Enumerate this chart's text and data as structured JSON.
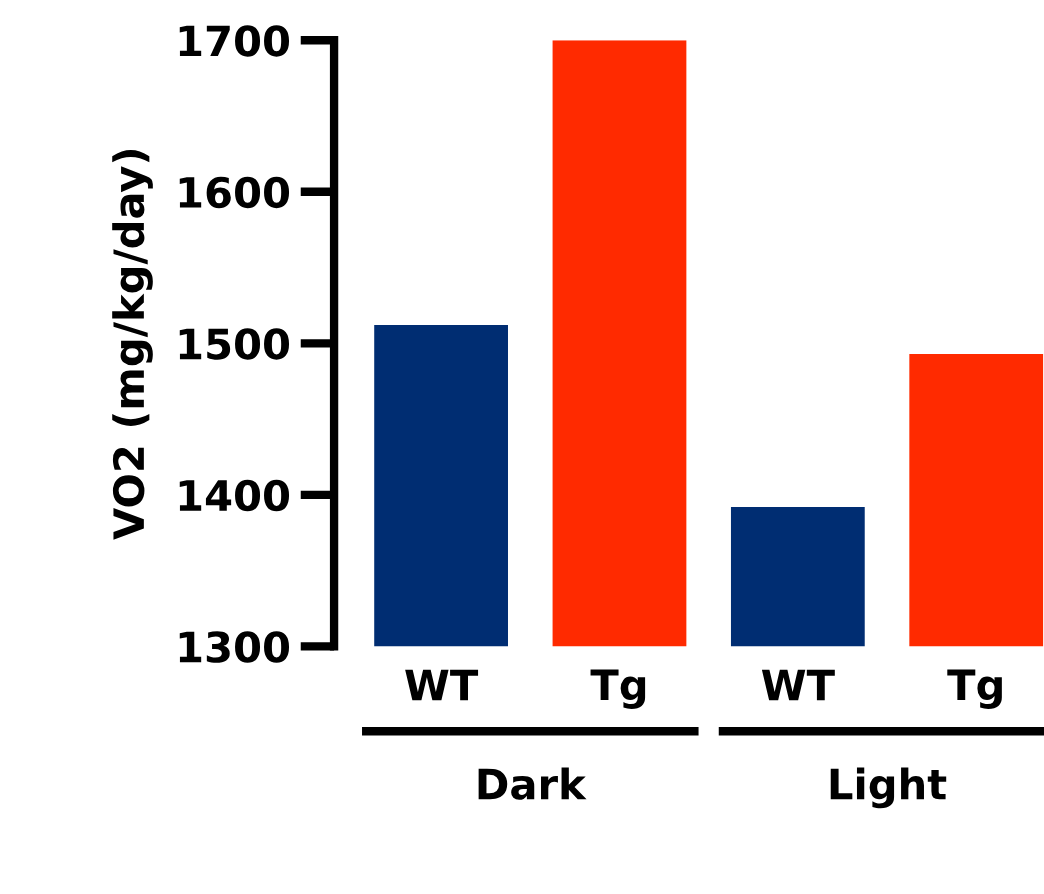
{
  "chart_data": {
    "type": "bar",
    "ylabel": "VO2 (mg/kg/day)",
    "categories": [
      "WT",
      "Tg",
      "WT",
      "Tg"
    ],
    "values": [
      1512,
      1700,
      1392,
      1493
    ],
    "colors": [
      "#002d72",
      "#ff2a00",
      "#002d72",
      "#ff2a00"
    ],
    "ylim": [
      1300,
      1700
    ],
    "yticks": [
      1300,
      1400,
      1500,
      1600,
      1700
    ],
    "annotations": [
      "Dark",
      "Light"
    ],
    "grid": false,
    "legend": false
  }
}
